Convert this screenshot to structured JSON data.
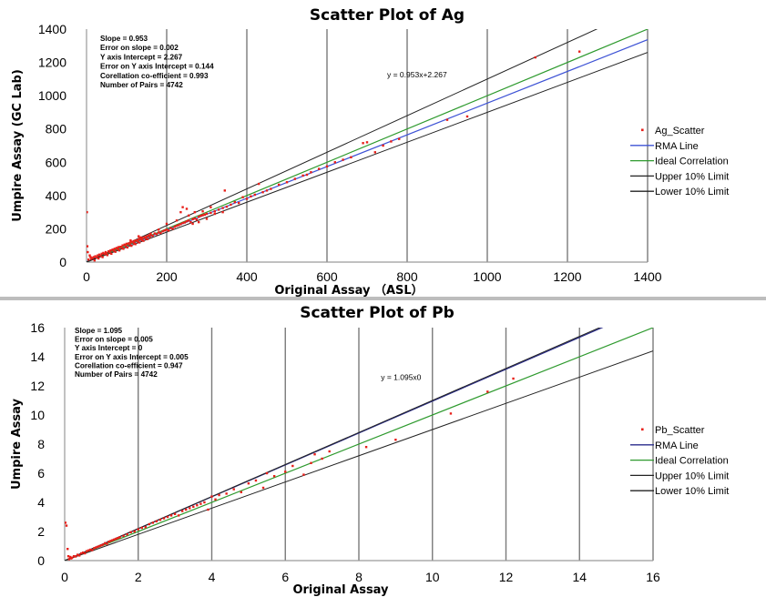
{
  "chart_data": [
    {
      "id": "ag",
      "type": "scatter",
      "title": "Scatter Plot of Ag",
      "xlabel": "Original Assay （ASL）",
      "ylabel": "Umpire Assay (GC Lab)",
      "xlim": [
        0,
        1400
      ],
      "ylim": [
        0,
        1400
      ],
      "xticks": [
        "0",
        "200",
        "400",
        "600",
        "800",
        "1000",
        "1200",
        "1400"
      ],
      "yticks": [
        "0",
        "200",
        "400",
        "600",
        "800",
        "1000",
        "1200",
        "1400"
      ],
      "grid": "vertical",
      "legend_position": "right",
      "stats": [
        "Slope = 0.953",
        "Error on slope = 0.002",
        "Y axis Intercept = 2.267",
        "Error on Y axis Intercept = 0.144",
        "Corellation co-efficient = 0.993",
        "Number of Pairs = 4742"
      ],
      "equation": {
        "text": "y = 0.953x+2.267",
        "x": 750,
        "y": 1110
      },
      "series": [
        {
          "name": "Ag_Scatter",
          "kind": "points",
          "color": "#e8201a",
          "points": [
            [
              1,
              300
            ],
            [
              2,
              95
            ],
            [
              3,
              60
            ],
            [
              5,
              15
            ],
            [
              8,
              40
            ],
            [
              10,
              30
            ],
            [
              12,
              20
            ],
            [
              15,
              25
            ],
            [
              18,
              30
            ],
            [
              20,
              10
            ],
            [
              22,
              35
            ],
            [
              25,
              28
            ],
            [
              28,
              40
            ],
            [
              30,
              22
            ],
            [
              32,
              45
            ],
            [
              35,
              38
            ],
            [
              38,
              50
            ],
            [
              40,
              30
            ],
            [
              42,
              55
            ],
            [
              45,
              48
            ],
            [
              48,
              60
            ],
            [
              50,
              52
            ],
            [
              52,
              42
            ],
            [
              55,
              65
            ],
            [
              58,
              58
            ],
            [
              60,
              70
            ],
            [
              62,
              50
            ],
            [
              65,
              75
            ],
            [
              68,
              68
            ],
            [
              70,
              80
            ],
            [
              72,
              62
            ],
            [
              75,
              85
            ],
            [
              78,
              78
            ],
            [
              80,
              90
            ],
            [
              82,
              70
            ],
            [
              85,
              92
            ],
            [
              88,
              85
            ],
            [
              90,
              100
            ],
            [
              92,
              80
            ],
            [
              95,
              105
            ],
            [
              98,
              96
            ],
            [
              100,
              110
            ],
            [
              102,
              88
            ],
            [
              105,
              112
            ],
            [
              108,
              104
            ],
            [
              110,
              118
            ],
            [
              112,
              98
            ],
            [
              115,
              122
            ],
            [
              118,
              115
            ],
            [
              120,
              128
            ],
            [
              122,
              108
            ],
            [
              125,
              130
            ],
            [
              128,
              124
            ],
            [
              130,
              138
            ],
            [
              132,
              118
            ],
            [
              135,
              140
            ],
            [
              138,
              132
            ],
            [
              140,
              145
            ],
            [
              142,
              128
            ],
            [
              145,
              150
            ],
            [
              148,
              142
            ],
            [
              150,
              155
            ],
            [
              152,
              138
            ],
            [
              155,
              160
            ],
            [
              158,
              150
            ],
            [
              160,
              165
            ],
            [
              165,
              158
            ],
            [
              170,
              172
            ],
            [
              175,
              168
            ],
            [
              180,
              178
            ],
            [
              185,
              175
            ],
            [
              190,
              185
            ],
            [
              195,
              190
            ],
            [
              200,
              195
            ],
            [
              205,
              190
            ],
            [
              210,
              205
            ],
            [
              215,
              200
            ],
            [
              220,
              212
            ],
            [
              225,
              218
            ],
            [
              230,
              222
            ],
            [
              235,
              228
            ],
            [
              240,
              235
            ],
            [
              245,
              238
            ],
            [
              250,
              245
            ],
            [
              255,
              250
            ],
            [
              260,
              240
            ],
            [
              265,
              258
            ],
            [
              270,
              262
            ],
            [
              275,
              255
            ],
            [
              280,
              272
            ],
            [
              285,
              278
            ],
            [
              290,
              282
            ],
            [
              295,
              285
            ],
            [
              300,
              290
            ],
            [
              310,
              296
            ],
            [
              320,
              305
            ],
            [
              330,
              315
            ],
            [
              340,
              325
            ],
            [
              350,
              333
            ],
            [
              360,
              345
            ],
            [
              240,
              330
            ],
            [
              250,
              320
            ],
            [
              200,
              230
            ],
            [
              180,
              195
            ],
            [
              160,
              170
            ],
            [
              130,
              155
            ],
            [
              110,
              130
            ],
            [
              120,
              110
            ],
            [
              135,
              148
            ],
            [
              225,
              250
            ],
            [
              235,
              300
            ],
            [
              255,
              280
            ],
            [
              270,
              300
            ],
            [
              290,
              305
            ],
            [
              310,
              330
            ],
            [
              340,
              300
            ],
            [
              300,
              260
            ],
            [
              280,
              240
            ],
            [
              265,
              230
            ],
            [
              320,
              290
            ],
            [
              345,
              430
            ],
            [
              370,
              360
            ],
            [
              380,
              355
            ],
            [
              390,
              390
            ],
            [
              400,
              380
            ],
            [
              410,
              395
            ],
            [
              420,
              405
            ],
            [
              430,
              470
            ],
            [
              440,
              420
            ],
            [
              450,
              430
            ],
            [
              460,
              440
            ],
            [
              480,
              465
            ],
            [
              500,
              480
            ],
            [
              520,
              500
            ],
            [
              540,
              520
            ],
            [
              550,
              525
            ],
            [
              560,
              540
            ],
            [
              580,
              560
            ],
            [
              600,
              575
            ],
            [
              620,
              600
            ],
            [
              640,
              615
            ],
            [
              660,
              630
            ],
            [
              690,
              715
            ],
            [
              700,
              720
            ],
            [
              720,
              660
            ],
            [
              740,
              700
            ],
            [
              760,
              725
            ],
            [
              780,
              740
            ],
            [
              900,
              855
            ],
            [
              950,
              875
            ],
            [
              1120,
              1230
            ],
            [
              1230,
              1265
            ]
          ]
        },
        {
          "name": "RMA Line",
          "kind": "line",
          "color": "#3d52d5",
          "slope": 0.953,
          "intercept": 2.267
        },
        {
          "name": "Ideal Correlation",
          "kind": "line",
          "color": "#2e9a2e",
          "slope": 1.0,
          "intercept": 0
        },
        {
          "name": "Upper 10% Limit",
          "kind": "line",
          "color": "#222222",
          "slope": 1.1,
          "intercept": 0
        },
        {
          "name": "Lower 10% Limit",
          "kind": "line",
          "color": "#222222",
          "slope": 0.9,
          "intercept": 0
        }
      ]
    },
    {
      "id": "pb",
      "type": "scatter",
      "title": "Scatter Plot of Pb",
      "xlabel": "Original Assay",
      "ylabel": "Umpire Assay",
      "xlim": [
        0,
        16
      ],
      "ylim": [
        0,
        16
      ],
      "xticks": [
        "0",
        "2",
        "4",
        "6",
        "8",
        "10",
        "12",
        "14",
        "16"
      ],
      "yticks": [
        "0",
        "2",
        "4",
        "6",
        "8",
        "10",
        "12",
        "14",
        "16"
      ],
      "grid": "vertical",
      "legend_position": "right",
      "stats": [
        "Slope = 1.095",
        "Error on slope = 0.005",
        "Y axis Intercept = 0",
        "Error on Y axis Intercept = 0.005",
        "Corellation co-efficient = 0.947",
        "Number of Pairs = 4742"
      ],
      "equation": {
        "text": "y = 1.095x0",
        "x": 8.6,
        "y": 12.4
      },
      "series": [
        {
          "name": "Pb_Scatter",
          "kind": "points",
          "color": "#e8201a",
          "points": [
            [
              0.02,
              2.6
            ],
            [
              0.05,
              2.4
            ],
            [
              0.08,
              0.8
            ],
            [
              0.1,
              0.3
            ],
            [
              0.12,
              0.1
            ],
            [
              0.15,
              0.25
            ],
            [
              0.18,
              0.15
            ],
            [
              0.2,
              0.2
            ],
            [
              0.25,
              0.3
            ],
            [
              0.3,
              0.28
            ],
            [
              0.35,
              0.4
            ],
            [
              0.4,
              0.35
            ],
            [
              0.45,
              0.5
            ],
            [
              0.5,
              0.55
            ],
            [
              0.55,
              0.5
            ],
            [
              0.6,
              0.65
            ],
            [
              0.65,
              0.7
            ],
            [
              0.7,
              0.75
            ],
            [
              0.75,
              0.72
            ],
            [
              0.8,
              0.85
            ],
            [
              0.85,
              0.9
            ],
            [
              0.9,
              0.95
            ],
            [
              0.95,
              1.0
            ],
            [
              1.0,
              1.05
            ],
            [
              1.05,
              1.1
            ],
            [
              1.1,
              1.2
            ],
            [
              1.15,
              1.15
            ],
            [
              1.2,
              1.3
            ],
            [
              1.25,
              1.35
            ],
            [
              1.3,
              1.4
            ],
            [
              1.35,
              1.45
            ],
            [
              1.4,
              1.5
            ],
            [
              1.45,
              1.55
            ],
            [
              1.5,
              1.6
            ],
            [
              1.6,
              1.7
            ],
            [
              1.7,
              1.8
            ],
            [
              1.8,
              1.95
            ],
            [
              1.9,
              2.0
            ],
            [
              2.0,
              2.15
            ],
            [
              2.1,
              2.25
            ],
            [
              2.2,
              2.3
            ],
            [
              2.3,
              2.5
            ],
            [
              2.4,
              2.6
            ],
            [
              2.5,
              2.7
            ],
            [
              2.6,
              2.8
            ],
            [
              2.7,
              2.9
            ],
            [
              2.8,
              3.0
            ],
            [
              2.9,
              3.1
            ],
            [
              3.0,
              3.2
            ],
            [
              3.1,
              3.1
            ],
            [
              3.2,
              3.4
            ],
            [
              3.3,
              3.5
            ],
            [
              3.4,
              3.6
            ],
            [
              3.5,
              3.7
            ],
            [
              3.6,
              3.8
            ],
            [
              3.7,
              3.9
            ],
            [
              3.8,
              4.0
            ],
            [
              3.9,
              3.5
            ],
            [
              4.0,
              4.4
            ],
            [
              4.1,
              4.2
            ],
            [
              4.2,
              4.5
            ],
            [
              4.4,
              4.6
            ],
            [
              4.6,
              4.9
            ],
            [
              4.8,
              4.7
            ],
            [
              5.0,
              5.3
            ],
            [
              5.2,
              5.5
            ],
            [
              5.4,
              5.0
            ],
            [
              5.5,
              6.0
            ],
            [
              5.7,
              5.8
            ],
            [
              6.0,
              6.1
            ],
            [
              6.2,
              6.5
            ],
            [
              6.5,
              5.9
            ],
            [
              6.7,
              6.7
            ],
            [
              6.8,
              7.3
            ],
            [
              7.0,
              7.0
            ],
            [
              7.2,
              7.5
            ],
            [
              8.2,
              7.8
            ],
            [
              9.0,
              8.3
            ],
            [
              10.5,
              10.1
            ],
            [
              11.5,
              11.6
            ],
            [
              12.2,
              12.5
            ]
          ]
        },
        {
          "name": "RMA Line",
          "kind": "line",
          "color": "#2a2c8c",
          "slope": 1.095,
          "intercept": 0
        },
        {
          "name": "Ideal Correlation",
          "kind": "line",
          "color": "#2e9a2e",
          "slope": 1.0,
          "intercept": 0
        },
        {
          "name": "Upper 10% Limit",
          "kind": "line",
          "color": "#222222",
          "slope": 1.1,
          "intercept": 0
        },
        {
          "name": "Lower 10% Limit",
          "kind": "line",
          "color": "#222222",
          "slope": 0.9,
          "intercept": 0
        }
      ]
    }
  ]
}
